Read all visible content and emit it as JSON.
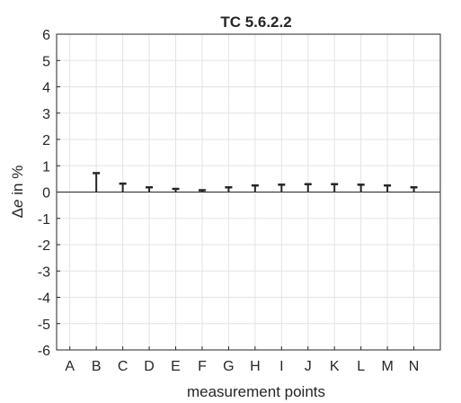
{
  "chart_data": {
    "type": "stem",
    "title": "TC 5.6.2.2",
    "xlabel": "measurement points",
    "ylabel_symbol": "Δ",
    "ylabel_var": "e",
    "ylabel_rest": " in %",
    "categories": [
      "A",
      "B",
      "C",
      "D",
      "E",
      "F",
      "G",
      "H",
      "I",
      "J",
      "K",
      "L",
      "M",
      "N"
    ],
    "values": [
      null,
      0.72,
      0.32,
      0.18,
      0.12,
      0.07,
      0.18,
      0.25,
      0.28,
      0.3,
      0.3,
      0.28,
      0.25,
      0.18
    ],
    "ylim": [
      -6,
      6
    ],
    "yticks": [
      6,
      5,
      4,
      3,
      2,
      1,
      0,
      -1,
      -2,
      -3,
      -4,
      -5,
      -6
    ],
    "grid": true,
    "colors": {
      "stem": "#262626",
      "grid": "#e3e3e3",
      "axis": "#262626",
      "zero_line": "#262626"
    }
  }
}
